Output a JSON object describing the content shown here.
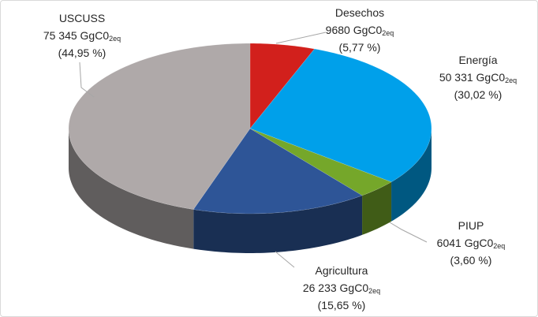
{
  "chart_data": {
    "type": "pie3d",
    "categories": [
      "Desechos",
      "Energía",
      "PIUP",
      "Agricultura",
      "USCUSS"
    ],
    "values": [
      9680,
      50331,
      6041,
      26233,
      75345
    ],
    "value_labels": [
      "9680",
      "50 331",
      "6041",
      "26 233",
      "75 345"
    ],
    "unit": "GgC0",
    "unit_sub": "2eq",
    "percents": [
      5.77,
      30.02,
      3.6,
      15.65,
      44.95
    ],
    "percent_labels": [
      "(5,77 %)",
      "(30,02 %)",
      "(3,60 %)",
      "(15,65 %)",
      "(44,95 %)"
    ],
    "colors": [
      "#d2201c",
      "#00a0ea",
      "#75a72a",
      "#2e5597",
      "#afa9a9"
    ]
  }
}
